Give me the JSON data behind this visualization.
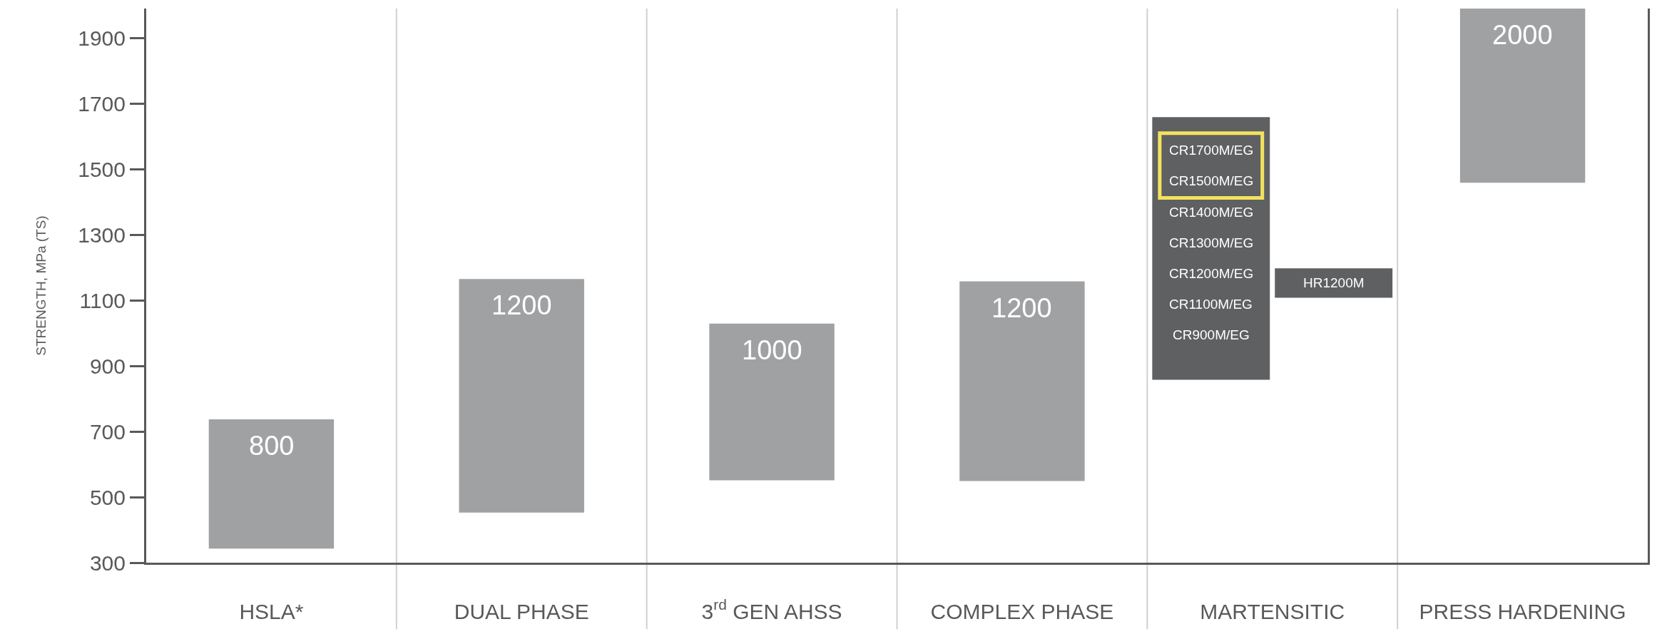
{
  "chart_data": {
    "type": "bar",
    "ylabel": "STRENGTH, MPa (TS)",
    "categories": [
      "HSLA*",
      "DUAL PHASE",
      "3$^{rd}$ GEN AHSS",
      "COMPLEX PHASE",
      "MARTENSITIC",
      "PRESS HARDENING"
    ],
    "series": [
      {
        "colors": [
          "#a0a1a3",
          "#a0a1a3",
          "#a0a1a3",
          "#a0a1a3",
          "#5f6062",
          "#a0a1a3"
        ],
        "base": [
          343,
          453,
          551,
          549,
          858,
          1459
        ],
        "values": [
          394,
          712,
          478,
          609,
          801,
          531
        ]
      },
      {
        "color": "#5f6062",
        "base": [
          null,
          null,
          null,
          null,
          1108,
          null
        ],
        "values": [
          null,
          null,
          null,
          null,
          90,
          null
        ]
      }
    ],
    "annotations": [
      {
        "text": "CR1700M/EG",
        "x": "MARTENSITIC",
        "y": 1558
      },
      {
        "text": "CR1500M/EG",
        "x": "MARTENSITIC",
        "y": 1464
      },
      {
        "text": "CR1400M/EG",
        "x": "MARTENSITIC",
        "y": 1370
      },
      {
        "text": "CR1300M/EG",
        "x": "MARTENSITIC",
        "y": 1276
      },
      {
        "text": "CR1200M/EG",
        "x": "MARTENSITIC",
        "y": 1181
      },
      {
        "text": "CR1100M/EG",
        "x": "MARTENSITIC",
        "y": 1089
      },
      {
        "text": "CR900M/EG",
        "x": "MARTENSITIC",
        "y": 994
      },
      {
        "text": "HR1200M",
        "x": "MARTENSITIC",
        "y": 1198
      },
      {
        "text": "800",
        "x": "HSLA*",
        "y": 737
      },
      {
        "text": "1200",
        "x": "DUAL PHASE",
        "y": 1165
      },
      {
        "text": "1000",
        "x": "3$^{rd}$ GEN AHSS",
        "y": 1029
      },
      {
        "text": "1200",
        "x": "COMPLEX PHASE",
        "y": 1158
      },
      {
        "text": "2000",
        "x": "PRESS HARDENING",
        "y": 1990
      }
    ],
    "ylim": [
      300,
      1990
    ],
    "yticks": [
      300,
      500,
      700,
      900,
      1100,
      1300,
      1500,
      1700,
      1900
    ],
    "grid": "x"
  }
}
